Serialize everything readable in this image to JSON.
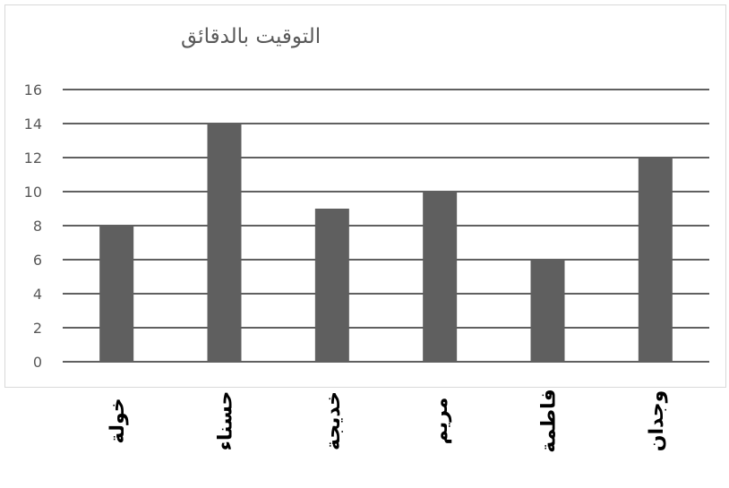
{
  "chart_data": {
    "type": "bar",
    "title": "التوقيت بالدقائق",
    "categories": [
      "خولة",
      "حسناء",
      "خديجة",
      "مريم",
      "فاطمة",
      "وجدان"
    ],
    "values": [
      8,
      14,
      9,
      10,
      6,
      12
    ],
    "ylim": [
      0,
      16
    ],
    "y_ticks": [
      0,
      2,
      4,
      6,
      8,
      10,
      12,
      14,
      16
    ],
    "grid": true,
    "legend": "none",
    "xlabel": "",
    "ylabel": "",
    "colors": {
      "bar": "#5f5f5f",
      "grid": "#000000",
      "frame": "#d9d9d9",
      "text": "#595959",
      "category_text": "#000000"
    }
  }
}
